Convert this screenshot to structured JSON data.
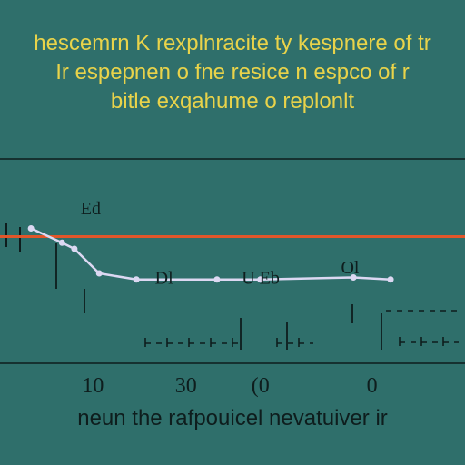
{
  "colors": {
    "background": "#2f6f6b",
    "title": "#e9d34a",
    "series_line": "#dcd8f2",
    "reference_line": "#e2562a",
    "ink": "#0e1d1d"
  },
  "chart_data": {
    "type": "line",
    "title_lines": [
      "hescemrn K rexplnracite ty kespnere of tr",
      "Ir espepnen o fne resice n espco of r",
      "bitle exqahume o replonlt"
    ],
    "xlabel": "neun the rafpouicel nevatuiver ir",
    "ylabel": "",
    "x_tick_labels": [
      "10",
      "30",
      "(0",
      "0"
    ],
    "x_ticks": [
      15,
      30,
      42,
      60
    ],
    "xlim": [
      0,
      75
    ],
    "ylim": [
      0,
      1
    ],
    "grid": false,
    "reference_line": {
      "y": 0.62
    },
    "series": [
      {
        "x": [
          5,
          10,
          12,
          16,
          22,
          35,
          42,
          57,
          63
        ],
        "y": [
          0.66,
          0.59,
          0.56,
          0.44,
          0.41,
          0.41,
          0.41,
          0.42,
          0.41
        ]
      }
    ],
    "annotations": [
      {
        "text": "Ed",
        "x": 13,
        "y": 0.73
      },
      {
        "text": "Dl",
        "x": 25,
        "y": 0.39
      },
      {
        "text": "U Eb",
        "x": 39,
        "y": 0.39
      },
      {
        "text": "Ol",
        "x": 55,
        "y": 0.44
      }
    ]
  }
}
